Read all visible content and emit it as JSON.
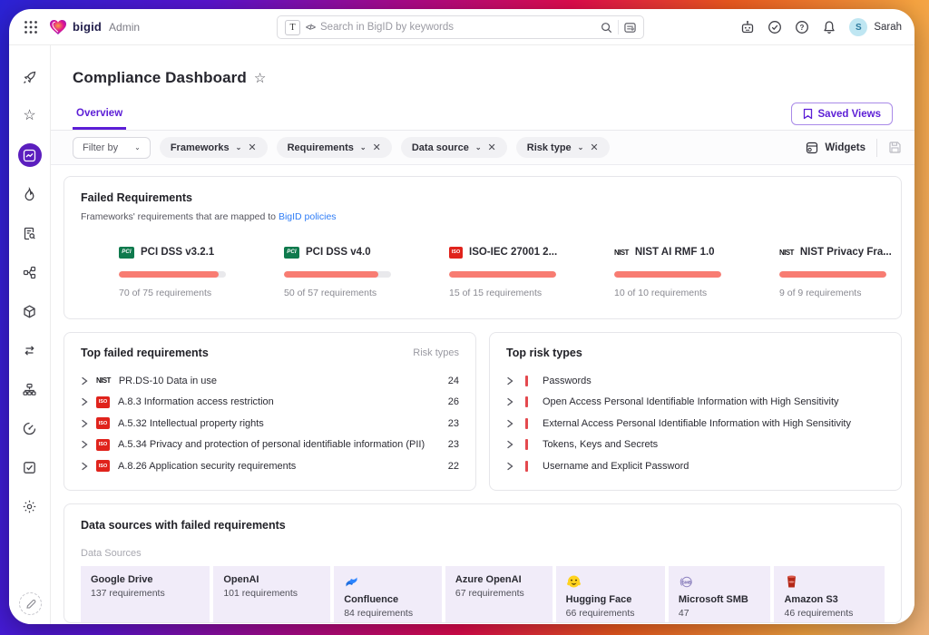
{
  "colors": {
    "accent_purple": "#5c1ed6",
    "active_nav_bg": "#5b1ebe",
    "progress_fill": "#f87c72",
    "risk_red": "#e4494e",
    "link_blue": "#2e7cf6",
    "treemap_bg": "#f1ecf9"
  },
  "topbar": {
    "brand": "bigid",
    "brand_suffix": "Admin",
    "search_placeholder": "Search in BigID by keywords",
    "text_toggle": "T",
    "code_toggle": "</>",
    "user": {
      "initial": "S",
      "name": "Sarah"
    }
  },
  "page": {
    "title": "Compliance Dashboard",
    "star": "☆",
    "tab_overview": "Overview",
    "saved_views": "Saved Views"
  },
  "filters": {
    "filter_by": "Filter by",
    "chips": [
      {
        "label": "Frameworks"
      },
      {
        "label": "Requirements"
      },
      {
        "label": "Data source"
      },
      {
        "label": "Risk type"
      }
    ],
    "widgets": "Widgets"
  },
  "failed_requirements": {
    "title": "Failed Requirements",
    "subtitle_prefix": "Frameworks' requirements that are mapped to ",
    "subtitle_link": "BigID policies",
    "frameworks": [
      {
        "name": "PCI DSS v3.2.1",
        "logo": "pci",
        "completed": 70,
        "total": 75,
        "label": "70 of 75 requirements",
        "pct": 93
      },
      {
        "name": "PCI DSS v4.0",
        "logo": "pci",
        "completed": 50,
        "total": 57,
        "label": "50 of 57 requirements",
        "pct": 88
      },
      {
        "name": "ISO-IEC 27001 2...",
        "logo": "iso",
        "completed": 15,
        "total": 15,
        "label": "15 of 15 requirements",
        "pct": 100
      },
      {
        "name": "NIST AI RMF 1.0",
        "logo": "nist",
        "completed": 10,
        "total": 10,
        "label": "10 of 10 requirements",
        "pct": 100
      },
      {
        "name": "NIST Privacy Fra...",
        "logo": "nist",
        "completed": 9,
        "total": 9,
        "label": "9 of 9 requirements",
        "pct": 100
      }
    ]
  },
  "top_failed_requirements": {
    "title": "Top failed requirements",
    "column_header": "Risk types",
    "rows": [
      {
        "icon": "nist",
        "label": "PR.DS-10 Data in use",
        "count": "24"
      },
      {
        "icon": "iso",
        "label": "A.8.3 Information access restriction",
        "count": "26"
      },
      {
        "icon": "iso",
        "label": "A.5.32 Intellectual property rights",
        "count": "23"
      },
      {
        "icon": "iso",
        "label": "A.5.34 Privacy and protection of personal identifiable information (PII)",
        "count": "23"
      },
      {
        "icon": "iso",
        "label": "A.8.26 Application security requirements",
        "count": "22"
      }
    ]
  },
  "top_risk_types": {
    "title": "Top risk types",
    "rows": [
      {
        "label": "Passwords"
      },
      {
        "label": "Open Access Personal Identifiable Information with High Sensitivity"
      },
      {
        "label": "External Access Personal Identifiable Information with High Sensitivity"
      },
      {
        "label": "Tokens, Keys and Secrets"
      },
      {
        "label": "Username and Explicit Password"
      }
    ]
  },
  "data_sources": {
    "title": "Data sources with failed requirements",
    "group_label": "Data Sources",
    "items": [
      {
        "name": "Google Drive",
        "label": "137 requirements",
        "value": 137
      },
      {
        "name": "OpenAI",
        "label": "101 requirements",
        "value": 101
      },
      {
        "name": "Confluence",
        "label": "84 requirements",
        "value": 84,
        "icon": "confluence"
      },
      {
        "name": "Azure OpenAI",
        "label": "67 requirements",
        "value": 67
      },
      {
        "name": "Hugging Face",
        "label": "66 requirements",
        "value": 66,
        "icon": "huggingface"
      },
      {
        "name": "Microsoft SMB",
        "label": "47",
        "value": 47,
        "icon": "smb"
      },
      {
        "name": "Amazon S3",
        "label": "46 requirements",
        "value": 46,
        "icon": "s3"
      }
    ]
  }
}
